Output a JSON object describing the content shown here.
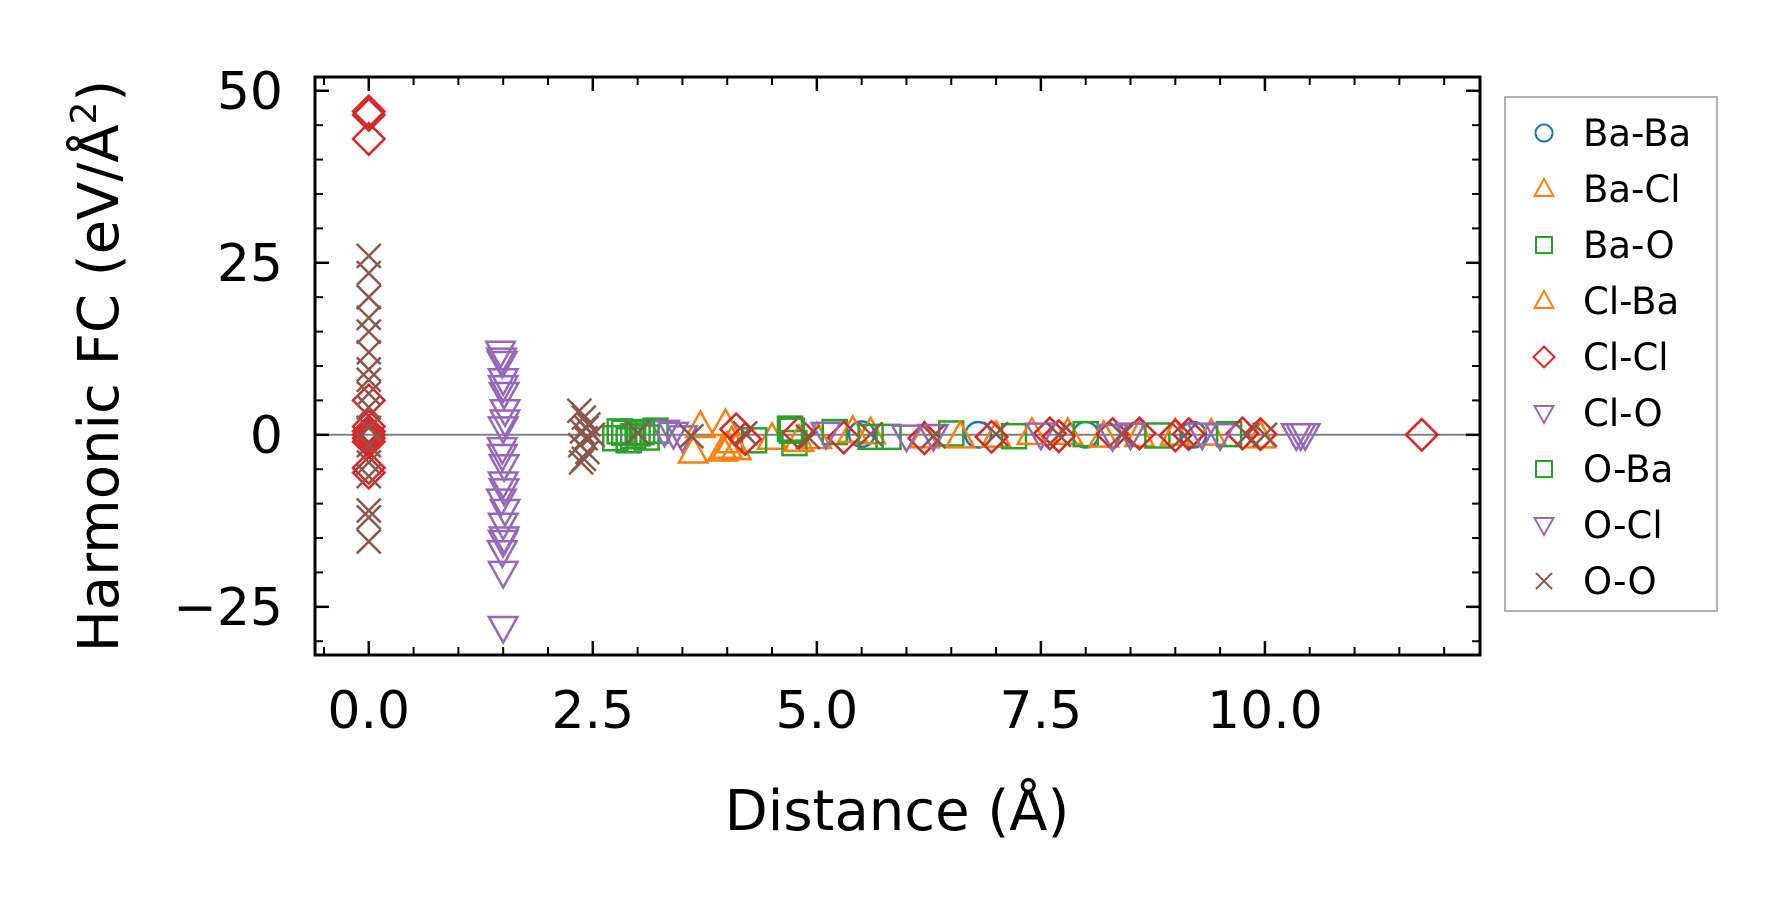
{
  "chart_data": {
    "type": "scatter",
    "xlabel": "Distance (Å)",
    "ylabel_main": "Harmonic FC (eV/Å",
    "ylabel_sup": "2",
    "ylabel_close": ")",
    "xlim": [
      -0.6,
      12.4
    ],
    "ylim": [
      -32,
      52
    ],
    "xticks": [
      0.0,
      2.5,
      5.0,
      7.5,
      10.0
    ],
    "xtick_labels": [
      "0.0",
      "2.5",
      "5.0",
      "7.5",
      "10.0"
    ],
    "yticks": [
      -25,
      0,
      25,
      50
    ],
    "ytick_labels": [
      "−25",
      "0",
      "25",
      "50"
    ],
    "zero_line": true,
    "grid": false,
    "legend_position": "outside-right",
    "series": [
      {
        "name": "Ba-Ba",
        "marker": "circle",
        "color": "#1f77b4",
        "x": [
          5.5,
          6.8,
          8.0,
          9.2
        ],
        "y": [
          0.1,
          0.0,
          0.0,
          0.0
        ]
      },
      {
        "name": "Ba-Cl",
        "marker": "triangle-up",
        "color": "#ff7f0e",
        "x": [
          3.62,
          3.95,
          4.0,
          4.1,
          3.7,
          4.5,
          5.0,
          5.6,
          6.2,
          7.0,
          7.8,
          8.6,
          9.4,
          9.95
        ],
        "y": [
          -2.5,
          -2.2,
          -1.8,
          -2.0,
          1.2,
          -0.5,
          -0.4,
          0.3,
          -0.3,
          -0.2,
          0.2,
          -0.1,
          0.1,
          -0.3
        ]
      },
      {
        "name": "Ba-O",
        "marker": "square",
        "color": "#2ca02c",
        "x": [
          2.8,
          2.9,
          3.0,
          3.1,
          3.2,
          4.3,
          4.7,
          4.75,
          5.2,
          5.8,
          6.5,
          7.2,
          8.0,
          8.8,
          9.6
        ],
        "y": [
          0.5,
          -0.8,
          0.2,
          -0.4,
          0.6,
          -0.8,
          0.9,
          -1.2,
          0.4,
          -0.3,
          0.2,
          -0.2,
          0.1,
          -0.1,
          0.1
        ]
      },
      {
        "name": "Cl-Ba",
        "marker": "triangle-up",
        "color": "#ff7f0e",
        "x": [
          3.98,
          4.05,
          4.8,
          5.4,
          6.6,
          7.4,
          8.2,
          9.0
        ],
        "y": [
          1.5,
          -1.0,
          -0.8,
          0.5,
          -0.3,
          0.2,
          -0.2,
          0.1
        ]
      },
      {
        "name": "Cl-Cl",
        "marker": "diamond",
        "color": "#d62728",
        "x": [
          0.0,
          0.0,
          0.0,
          0.0,
          0.0,
          0.0,
          0.0,
          0.0,
          0.0,
          0.0,
          0.0,
          4.1,
          4.2,
          4.8,
          5.3,
          6.2,
          6.95,
          7.6,
          7.7,
          8.3,
          8.6,
          9.0,
          9.15,
          9.75,
          9.95,
          11.75
        ],
        "y": [
          47.0,
          46.5,
          43.0,
          5.0,
          1.2,
          0.5,
          0.0,
          -0.5,
          -1.0,
          -4.8,
          -5.5,
          0.8,
          -0.6,
          0.3,
          -0.4,
          -0.5,
          -0.3,
          0.2,
          -0.2,
          0.1,
          0.2,
          -0.1,
          0.1,
          0.2,
          0.1,
          0.0
        ]
      },
      {
        "name": "Cl-O",
        "marker": "triangle-down",
        "color": "#9467bd",
        "x": [
          1.47,
          1.49,
          1.5,
          1.51,
          1.52,
          1.5,
          1.49,
          1.51,
          1.5,
          1.48,
          1.52,
          1.5,
          1.51,
          1.49,
          1.5,
          1.5,
          3.3,
          3.5,
          5.1,
          6.0,
          7.5,
          8.3,
          9.3,
          10.35,
          10.45
        ],
        "y": [
          12.0,
          10.5,
          8.0,
          6.0,
          3.5,
          1.0,
          -2.0,
          -4.5,
          -7.0,
          -9.5,
          -11.0,
          -13.0,
          -15.0,
          -17.0,
          -20.0,
          -28.0,
          0.5,
          -0.3,
          0.2,
          -0.2,
          0.1,
          -0.1,
          0.1,
          0.0,
          0.0
        ]
      },
      {
        "name": "O-Ba",
        "marker": "square",
        "color": "#2ca02c",
        "x": [
          2.75,
          2.85,
          2.95,
          3.05,
          4.72,
          5.6
        ],
        "y": [
          -0.5,
          0.3,
          -0.2,
          0.4,
          0.6,
          -0.3
        ]
      },
      {
        "name": "O-Cl",
        "marker": "triangle-down",
        "color": "#9467bd",
        "x": [
          1.48,
          1.5,
          1.52,
          1.49,
          1.51,
          1.5,
          3.4,
          6.3,
          8.5,
          9.5,
          10.4
        ],
        "y": [
          11.0,
          7.0,
          2.0,
          -3.0,
          -8.0,
          -15.5,
          0.2,
          -0.1,
          0.1,
          0.0,
          0.0
        ]
      },
      {
        "name": "O-O",
        "marker": "x",
        "color": "#8c564b",
        "x": [
          0.0,
          0.0,
          0.0,
          0.0,
          0.0,
          0.0,
          0.0,
          0.0,
          0.0,
          0.0,
          0.0,
          0.0,
          0.0,
          0.0,
          0.0,
          0.0,
          0.0,
          2.35,
          2.4,
          2.45,
          2.38,
          2.42,
          2.36,
          2.44,
          2.4,
          2.37,
          2.43,
          2.5,
          3.0,
          3.6,
          4.2,
          4.9,
          5.6,
          6.3,
          7.0,
          7.7,
          8.4,
          9.1,
          9.8,
          10.0
        ],
        "y": [
          26.0,
          23.5,
          20.0,
          17.0,
          15.0,
          12.0,
          9.5,
          8.0,
          6.0,
          4.0,
          1.0,
          -1.5,
          -4.0,
          -6.0,
          -11.0,
          -12.0,
          -15.5,
          3.5,
          2.5,
          1.5,
          0.5,
          -0.5,
          -1.5,
          -2.5,
          -3.5,
          -4.0,
          1.0,
          0.0,
          0.3,
          -0.2,
          0.2,
          -0.3,
          0.1,
          -0.2,
          0.1,
          0.0,
          0.1,
          -0.1,
          0.0,
          0.0
        ]
      }
    ]
  }
}
